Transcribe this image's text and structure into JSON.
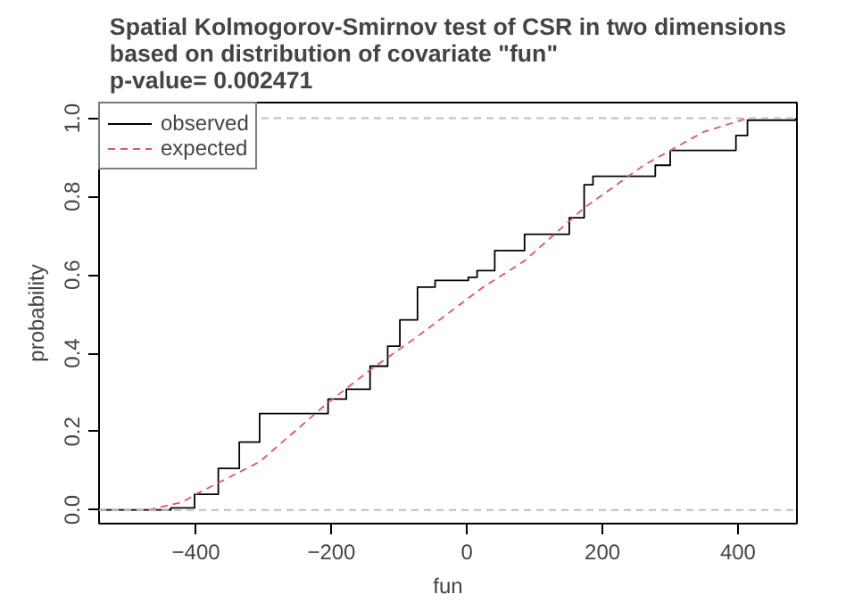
{
  "chart_data": {
    "type": "line",
    "title": "Spatial Kolmogorov-Smirnov test of CSR in two dimensions\nbased on distribution of covariate \"fun\"\np-value= 0.002471",
    "xlabel": "fun",
    "ylabel": "probability",
    "xlim": [
      -543,
      487
    ],
    "ylim": [
      -0.035,
      1.04
    ],
    "xticks": [
      -400,
      -200,
      0,
      200,
      400
    ],
    "yticks": [
      {
        "value": 0,
        "label": "0.0"
      },
      0.2,
      0.4,
      0.6,
      0.8,
      {
        "value": 1,
        "label": "1.0"
      }
    ],
    "legend": "top left",
    "grid": false,
    "ref_lines": [
      {
        "axis": "y",
        "value": 0,
        "color": "#bebebe",
        "line_style": "dashed"
      },
      {
        "axis": "y",
        "value": 1,
        "color": "#bebebe",
        "line_style": "dashed"
      }
    ],
    "series": [
      {
        "name": "observed",
        "type": "step",
        "color": "#000000",
        "line_style": "solid",
        "x": [
          -543,
          -469,
          -437,
          -402,
          -367,
          -336,
          -306,
          -231,
          -205,
          -178,
          -143,
          -117,
          -99,
          -73,
          -47,
          2,
          15,
          41,
          85,
          120,
          151,
          173,
          186,
          252,
          278,
          300,
          370,
          397,
          414,
          485
        ],
        "values": [
          0,
          0,
          0.005,
          0.04,
          0.106,
          0.173,
          0.246,
          0.246,
          0.283,
          0.308,
          0.367,
          0.418,
          0.485,
          0.569,
          0.586,
          0.594,
          0.611,
          0.662,
          0.704,
          0.704,
          0.746,
          0.83,
          0.852,
          0.852,
          0.88,
          0.918,
          0.918,
          0.956,
          0.995,
          1.0
        ]
      },
      {
        "name": "expected",
        "color": "#df536b",
        "line_style": "dashed",
        "x": [
          -470,
          -420,
          -400,
          -306,
          -205,
          -143,
          -73,
          24,
          85,
          173,
          261,
          349,
          414
        ],
        "values": [
          0,
          0.02,
          0.04,
          0.123,
          0.274,
          0.357,
          0.443,
          0.569,
          0.636,
          0.771,
          0.88,
          0.965,
          1.0
        ]
      }
    ]
  }
}
